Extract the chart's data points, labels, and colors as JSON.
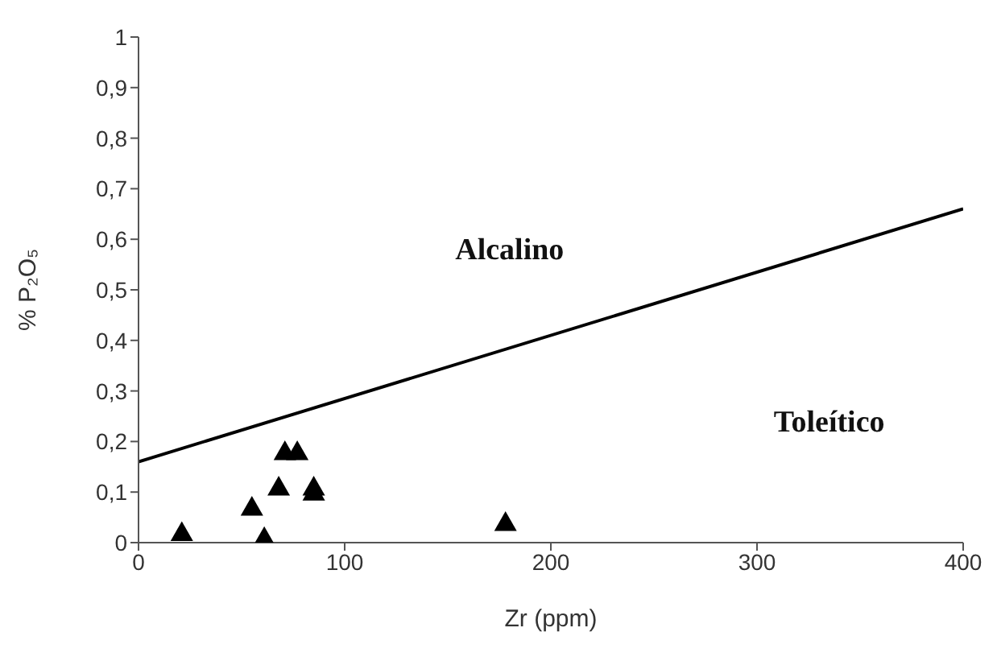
{
  "chart_data": {
    "type": "scatter",
    "xlabel": "Zr (ppm)",
    "ylabel": "% P₂O₅",
    "marker": "triangle",
    "grid": false,
    "legend": false,
    "xlim": [
      0,
      400
    ],
    "xticks": [
      0,
      100,
      200,
      300,
      400
    ],
    "ylim": [
      0,
      1
    ],
    "yticks": [
      0,
      {
        "value": 0.1,
        "label": "0,1"
      },
      {
        "value": 0.2,
        "label": "0,2"
      },
      {
        "value": 0.3,
        "label": "0,3"
      },
      {
        "value": 0.4,
        "label": "0,4"
      },
      {
        "value": 0.5,
        "label": "0,5"
      },
      {
        "value": 0.6,
        "label": "0,6"
      },
      {
        "value": 0.7,
        "label": "0,7"
      },
      {
        "value": 0.8,
        "label": "0,8"
      },
      {
        "value": 0.9,
        "label": "0,9"
      },
      1
    ],
    "annotations": [
      "Alcalino",
      "Toleítico"
    ],
    "series": [
      {
        "color": "#000000",
        "x": [
          21,
          55,
          61,
          68,
          71,
          77,
          85,
          85,
          178
        ],
        "values": [
          0.02,
          0.07,
          0.01,
          0.11,
          0.18,
          0.18,
          0.11,
          0.1,
          0.04
        ]
      },
      {
        "type": "line",
        "color": "#000000",
        "marker": "none",
        "x": [
          0,
          400
        ],
        "values": [
          0.16,
          0.66
        ]
      }
    ]
  }
}
